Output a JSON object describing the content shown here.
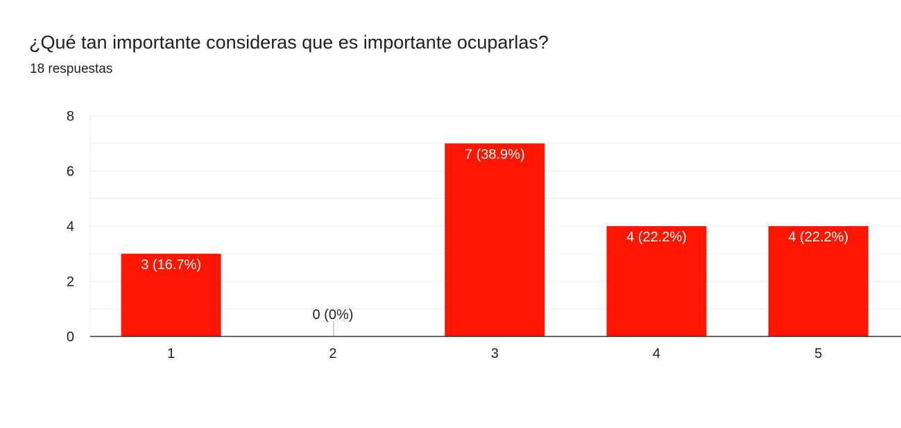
{
  "header": {
    "title": "¿Qué tan importante consideras que es importante ocuparlas?",
    "responses": "18 respuestas"
  },
  "colors": {
    "bar": "#ff1500",
    "grid": "#ebebeb",
    "axis": "#333333",
    "label_inside": "#ffffff",
    "label_outside": "#222222"
  },
  "chart_data": {
    "type": "bar",
    "title": "¿Qué tan importante consideras que es importante ocuparlas?",
    "subtitle": "18 respuestas",
    "xlabel": "",
    "ylabel": "",
    "categories": [
      "1",
      "2",
      "3",
      "4",
      "5"
    ],
    "values": [
      3,
      0,
      7,
      4,
      4
    ],
    "labels": [
      "3 (16.7%)",
      "0 (0%)",
      "7 (38.9%)",
      "4 (22.2%)",
      "4 (22.2%)"
    ],
    "ylim": [
      0,
      8
    ],
    "yticks": [
      0,
      2,
      4,
      6,
      8
    ],
    "minor_grid_step": 1,
    "grid": true,
    "legend": "none"
  }
}
